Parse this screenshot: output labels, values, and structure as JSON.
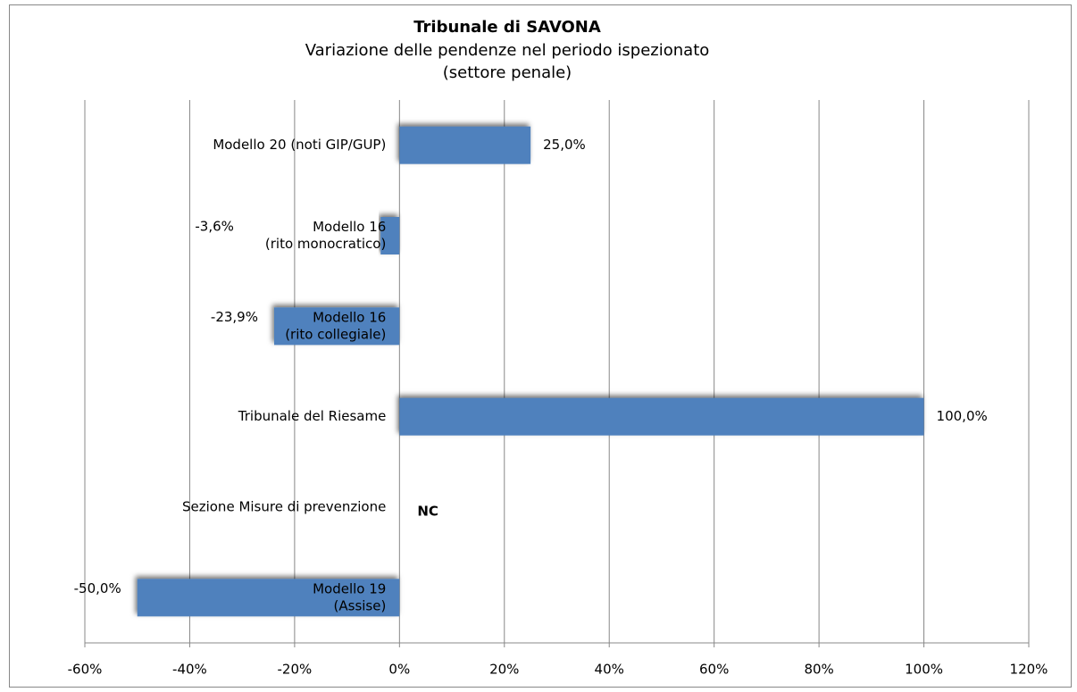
{
  "chart_data": {
    "type": "bar",
    "orientation": "horizontal",
    "title": "Tribunale di SAVONA",
    "subtitle": [
      "Variazione delle pendenze nel periodo ispezionato",
      "(settore penale)"
    ],
    "categories": [
      [
        "Modello 20 (noti GIP/GUP)"
      ],
      [
        "Modello 16",
        "(rito monocratico)"
      ],
      [
        "Modello 16",
        "(rito collegiale)"
      ],
      [
        "Tribunale del Riesame"
      ],
      [
        "Sezione Misure di prevenzione"
      ],
      [
        "Modello 19",
        "(Assise)"
      ]
    ],
    "values": [
      25,
      -3.6,
      -23.9,
      100,
      null,
      -50
    ],
    "value_labels": [
      "25,0%",
      "-3,6%",
      "-23,9%",
      "100,0%",
      "NC",
      "-50,0%"
    ],
    "color": "#4f81bd",
    "xlim": [
      -60,
      120
    ],
    "xticks": [
      {
        "value": -60,
        "label": "-60%"
      },
      {
        "value": -40,
        "label": "-40%"
      },
      {
        "value": -20,
        "label": "-20%"
      },
      {
        "value": 0,
        "label": "0%"
      },
      {
        "value": 20,
        "label": "20%"
      },
      {
        "value": 40,
        "label": "40%"
      },
      {
        "value": 60,
        "label": "60%"
      },
      {
        "value": 80,
        "label": "80%"
      },
      {
        "value": 100,
        "label": "100%"
      },
      {
        "value": 120,
        "label": "120%"
      }
    ],
    "grid": true
  }
}
